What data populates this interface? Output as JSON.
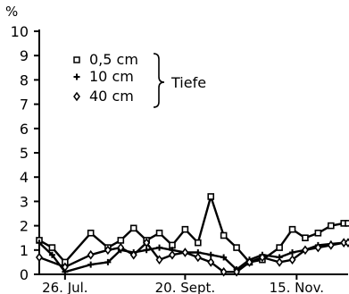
{
  "chart_data": {
    "type": "line",
    "ylabel": "%",
    "ylim": [
      0,
      10
    ],
    "yticks": [
      0,
      1,
      2,
      3,
      4,
      5,
      6,
      7,
      8,
      9,
      10
    ],
    "xlim": [
      0,
      36
    ],
    "xticks": [
      {
        "x": 3,
        "label": "26. Jul."
      },
      {
        "x": 17,
        "label": "20. Sept."
      },
      {
        "x": 30,
        "label": "15. Nov."
      }
    ],
    "legend": {
      "position": "upper-left",
      "group_label": "Tiefe",
      "entries": [
        {
          "marker": "□",
          "label": "0,5 cm"
        },
        {
          "marker": "+",
          "label": "10 cm"
        },
        {
          "marker": "◊",
          "label": "40 cm"
        }
      ]
    },
    "series": [
      {
        "label": "0,5 cm",
        "marker": "square",
        "x": [
          0,
          1.5,
          3,
          6,
          8,
          9.5,
          11,
          12.5,
          14,
          15.5,
          17,
          18.5,
          20,
          21.5,
          23,
          24.5,
          26,
          28,
          29.5,
          31,
          32.5,
          34,
          35.5,
          36
        ],
        "y": [
          1.4,
          1.1,
          0.5,
          1.7,
          1.1,
          1.4,
          1.9,
          1.4,
          1.7,
          1.2,
          1.85,
          1.3,
          3.2,
          1.6,
          1.1,
          0.5,
          0.6,
          1.1,
          1.85,
          1.5,
          1.7,
          2.0,
          2.1,
          2.1
        ]
      },
      {
        "label": "10 cm",
        "marker": "plus",
        "x": [
          0,
          1.5,
          3,
          6,
          8,
          9.5,
          11,
          12.5,
          14,
          15.5,
          17,
          18.5,
          20,
          21.5,
          23,
          24.5,
          26,
          28,
          29.5,
          31,
          32.5,
          34,
          35.5,
          36
        ],
        "y": [
          1.3,
          0.8,
          0.1,
          0.4,
          0.5,
          1.0,
          0.9,
          1.0,
          1.1,
          1.0,
          0.9,
          0.9,
          0.8,
          0.7,
          0.2,
          0.6,
          0.8,
          0.7,
          0.9,
          1.0,
          1.2,
          1.25,
          1.3,
          1.3
        ]
      },
      {
        "label": "40 cm",
        "marker": "diamond",
        "x": [
          0,
          3,
          6,
          8,
          9.5,
          11,
          12.5,
          14,
          15.5,
          17,
          18.5,
          20,
          21.5,
          23,
          24.5,
          26,
          28,
          29.5,
          31,
          32.5,
          34,
          35.5,
          36
        ],
        "y": [
          0.7,
          0.3,
          0.8,
          1.0,
          1.1,
          0.8,
          1.3,
          0.6,
          0.8,
          0.9,
          0.7,
          0.5,
          0.1,
          0.1,
          0.5,
          0.7,
          0.5,
          0.6,
          1.0,
          1.1,
          1.2,
          1.3,
          1.3
        ]
      }
    ]
  }
}
